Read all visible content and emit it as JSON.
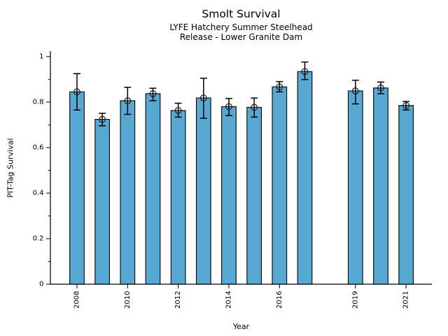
{
  "chart_data": {
    "type": "bar",
    "title": "Smolt Survival",
    "subtitle": [
      "LYFE Hatchery Summer Steelhead",
      "Release - Lower Granite Dam"
    ],
    "xlabel": "Year",
    "ylabel": "PIT-Tag Survival",
    "categories": [
      2008,
      2009,
      2010,
      2011,
      2012,
      2013,
      2014,
      2015,
      2016,
      2017,
      2019,
      2020,
      2021
    ],
    "values": [
      0.845,
      0.724,
      0.806,
      0.837,
      0.763,
      0.818,
      0.78,
      0.777,
      0.867,
      0.934,
      0.849,
      0.862,
      0.785
    ],
    "error_low": [
      0.765,
      0.696,
      0.746,
      0.806,
      0.734,
      0.729,
      0.741,
      0.734,
      0.845,
      0.899,
      0.792,
      0.837,
      0.765
    ],
    "error_high": [
      0.925,
      0.751,
      0.865,
      0.861,
      0.795,
      0.905,
      0.816,
      0.818,
      0.89,
      0.976,
      0.896,
      0.888,
      0.803
    ],
    "x_ticks": [
      2008,
      2010,
      2012,
      2014,
      2016,
      2019,
      2021
    ],
    "x_tick_labels": [
      "2008",
      "2010",
      "2012",
      "2014",
      "2016",
      "2019",
      "2021"
    ],
    "y_ticks": [
      0,
      0.2,
      0.4,
      0.6,
      0.8,
      1
    ],
    "y_tick_labels": [
      "0",
      "0.2",
      "0.4",
      "0.6",
      "0.8",
      "1"
    ],
    "y_minor_tick_step": 0.1,
    "xlim": [
      2006.95,
      2022.02
    ],
    "ylim": [
      0,
      1.024
    ],
    "bar_width_years": 0.57,
    "grid": false,
    "legend": null,
    "marker": "open-circle",
    "colors": {
      "bar_fill": "#58A8D4",
      "bar_edge": "#000000",
      "error_bar": "#000000",
      "marker_edge": "#1a1a1a",
      "axis": "#000000",
      "background": "#ffffff"
    }
  }
}
